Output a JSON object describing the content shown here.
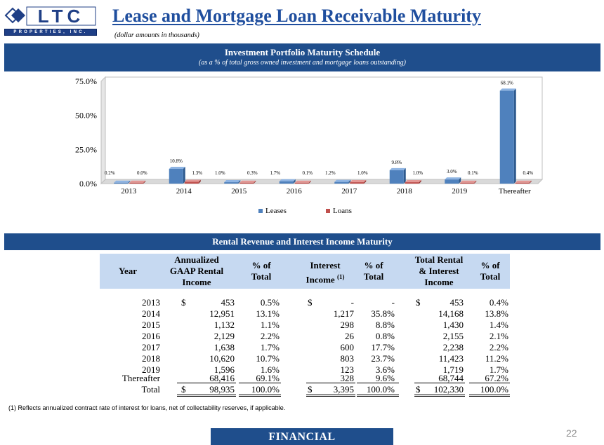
{
  "logo": {
    "letters": "LTC",
    "tagline": "PROPERTIES, INC."
  },
  "header": {
    "title": "Lease and Mortgage Loan Receivable Maturity",
    "note": "(dollar amounts in thousands)"
  },
  "chart_section": {
    "title": "Investment Portfolio Maturity Schedule",
    "subtitle": "(as a % of total gross owned investment and mortgage loans outstanding)"
  },
  "chart_data": {
    "type": "bar",
    "categories": [
      "2013",
      "2014",
      "2015",
      "2016",
      "2017",
      "2018",
      "2019",
      "Thereafter"
    ],
    "series": [
      {
        "name": "Leases",
        "color": "#4f81bd",
        "values": [
          0.2,
          10.8,
          1.0,
          1.7,
          1.2,
          9.8,
          3.0,
          68.1
        ],
        "labels": [
          "0.2%",
          "10.8%",
          "1.0%",
          "1.7%",
          "1.2%",
          "9.8%",
          "3.0%",
          "68.1%"
        ]
      },
      {
        "name": "Loans",
        "color": "#c0504d",
        "values": [
          0.0,
          1.3,
          0.3,
          0.1,
          1.0,
          1.0,
          0.1,
          0.4
        ],
        "labels": [
          "0.0%",
          "1.3%",
          "0.3%",
          "0.1%",
          "1.0%",
          "1.0%",
          "0.1%",
          "0.4%"
        ]
      }
    ],
    "yticks": [
      "0.0%",
      "25.0%",
      "50.0%",
      "75.0%"
    ],
    "ylim": [
      0,
      75
    ],
    "legend": "bottom",
    "grid": false
  },
  "table_section": {
    "title": "Rental Revenue and Interest Income Maturity",
    "headers": {
      "year": "Year",
      "gaap_l1": "Annualized",
      "gaap_l2": "GAAP Rental",
      "gaap_l3": "Income",
      "pct1_l1": "% of",
      "pct1_l2": "Total",
      "int_l1": "Interest",
      "int_l2": "Income",
      "int_sup": "(1)",
      "pct2_l1": "% of",
      "pct2_l2": "Total",
      "tot_l1": "Total Rental",
      "tot_l2": "& Interest",
      "tot_l3": "Income",
      "pct3_l1": "% of",
      "pct3_l2": "Total"
    },
    "rows": [
      {
        "year": "2013",
        "gaap_sym": "$",
        "gaap": "453",
        "gaap_pct": "0.5%",
        "int_sym": "$",
        "int": "-",
        "int_pct": "-",
        "tot_sym": "$",
        "tot": "453",
        "tot_pct": "0.4%"
      },
      {
        "year": "2014",
        "gaap_sym": "",
        "gaap": "12,951",
        "gaap_pct": "13.1%",
        "int_sym": "",
        "int": "1,217",
        "int_pct": "35.8%",
        "tot_sym": "",
        "tot": "14,168",
        "tot_pct": "13.8%"
      },
      {
        "year": "2015",
        "gaap_sym": "",
        "gaap": "1,132",
        "gaap_pct": "1.1%",
        "int_sym": "",
        "int": "298",
        "int_pct": "8.8%",
        "tot_sym": "",
        "tot": "1,430",
        "tot_pct": "1.4%"
      },
      {
        "year": "2016",
        "gaap_sym": "",
        "gaap": "2,129",
        "gaap_pct": "2.2%",
        "int_sym": "",
        "int": "26",
        "int_pct": "0.8%",
        "tot_sym": "",
        "tot": "2,155",
        "tot_pct": "2.1%"
      },
      {
        "year": "2017",
        "gaap_sym": "",
        "gaap": "1,638",
        "gaap_pct": "1.7%",
        "int_sym": "",
        "int": "600",
        "int_pct": "17.7%",
        "tot_sym": "",
        "tot": "2,238",
        "tot_pct": "2.2%"
      },
      {
        "year": "2018",
        "gaap_sym": "",
        "gaap": "10,620",
        "gaap_pct": "10.7%",
        "int_sym": "",
        "int": "803",
        "int_pct": "23.7%",
        "tot_sym": "",
        "tot": "11,423",
        "tot_pct": "11.2%"
      },
      {
        "year": "2019",
        "gaap_sym": "",
        "gaap": "1,596",
        "gaap_pct": "1.6%",
        "int_sym": "",
        "int": "123",
        "int_pct": "3.6%",
        "tot_sym": "",
        "tot": "1,719",
        "tot_pct": "1.7%"
      },
      {
        "year": "Thereafter",
        "gaap_sym": "",
        "gaap": "68,416",
        "gaap_pct": "69.1%",
        "int_sym": "",
        "int": "328",
        "int_pct": "9.6%",
        "tot_sym": "",
        "tot": "68,744",
        "tot_pct": "67.2%"
      },
      {
        "year": "Total",
        "gaap_sym": "$",
        "gaap": "98,935",
        "gaap_pct": "100.0%",
        "int_sym": "$",
        "int": "3,395",
        "int_pct": "100.0%",
        "tot_sym": "$",
        "tot": "102,330",
        "tot_pct": "100.0%"
      }
    ]
  },
  "footnote": "(1)    Reflects annualized contract rate of interest for loans, net of collectability reserves, if applicable.",
  "footer": {
    "section": "FINANCIAL",
    "page": "22"
  }
}
